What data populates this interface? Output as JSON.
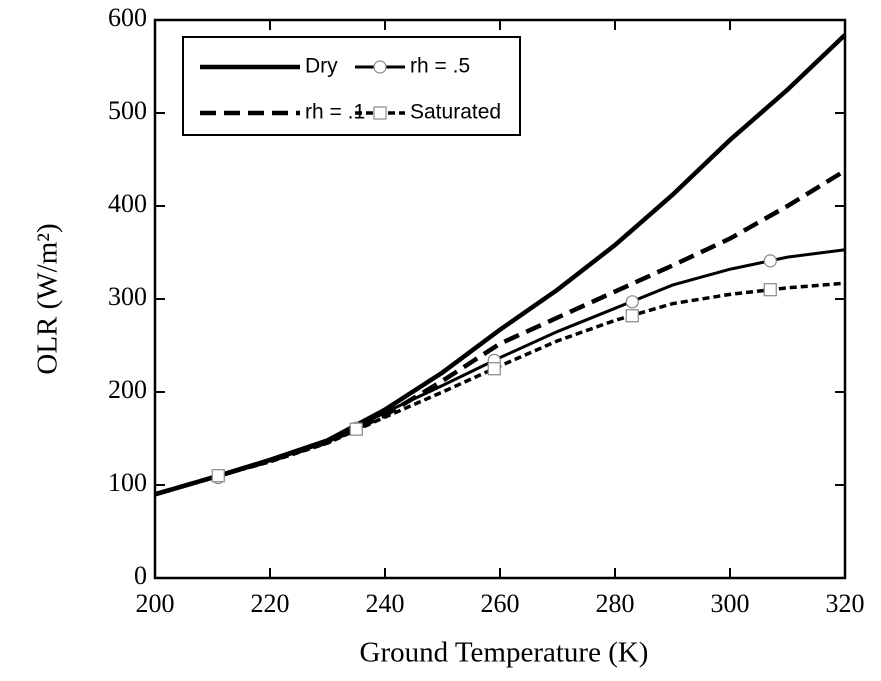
{
  "chart_data": {
    "type": "line",
    "xlabel": "Ground Temperature (K)",
    "ylabel": "OLR (W/m²)",
    "x": [
      200,
      210,
      220,
      230,
      240,
      250,
      260,
      270,
      280,
      290,
      300,
      310,
      320
    ],
    "series": [
      {
        "name": "Dry",
        "color": "#000000",
        "style": "solid",
        "width": 4.5,
        "values": [
          90,
          108,
          127,
          148,
          181,
          221,
          267,
          310,
          358,
          412,
          471,
          525,
          584
        ]
      },
      {
        "name": "rh = .5",
        "color": "#000000",
        "style": "solid",
        "width": 3,
        "marker": "circle",
        "values": [
          90,
          108,
          126,
          146,
          178,
          207,
          237,
          265,
          290,
          315,
          332,
          345,
          353
        ],
        "markers": {
          "x": [
            211,
            235,
            259,
            283,
            307
          ],
          "values": [
            108,
            161,
            234,
            297,
            341
          ]
        }
      },
      {
        "name": "rh = .1",
        "color": "#000000",
        "style": "dashed",
        "width": 4.5,
        "values": [
          90,
          108,
          126,
          146,
          175,
          212,
          252,
          280,
          308,
          336,
          365,
          400,
          438
        ]
      },
      {
        "name": "Saturated",
        "color": "#000000",
        "style": "dotted",
        "width": 3.5,
        "marker": "square",
        "values": [
          90,
          108,
          125,
          145,
          173,
          200,
          228,
          255,
          277,
          295,
          305,
          312,
          317
        ],
        "markers": {
          "x": [
            211,
            235,
            259,
            283,
            307
          ],
          "values": [
            110,
            160,
            225,
            282,
            310
          ]
        }
      }
    ],
    "xlim": [
      200,
      320
    ],
    "ylim": [
      0,
      600
    ],
    "xticks": [
      200,
      220,
      240,
      260,
      280,
      300,
      320
    ],
    "yticks": [
      0,
      100,
      200,
      300,
      400,
      500,
      600
    ],
    "legend": "upper-left"
  }
}
